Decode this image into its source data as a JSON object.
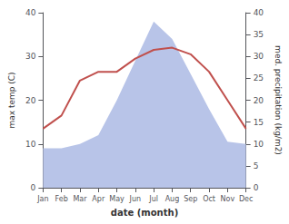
{
  "chart_data": {
    "type": "line",
    "categories": [
      "Jan",
      "Feb",
      "Mar",
      "Apr",
      "May",
      "Jun",
      "Jul",
      "Aug",
      "Sep",
      "Oct",
      "Nov",
      "Dec"
    ],
    "xlabel": "date (month)",
    "ylabel": "max temp (C)",
    "y2label": "med. precipitation (kg/m2)",
    "ylim": [
      0,
      40
    ],
    "yticks": [
      0,
      10,
      20,
      30,
      40
    ],
    "y2lim": [
      0,
      40
    ],
    "y2ticks": [
      0,
      5,
      10,
      15,
      20,
      25,
      30,
      35,
      40
    ],
    "grid": false,
    "series": [
      {
        "type": "area",
        "axis": "y2",
        "color": "#b8c4e8",
        "values": [
          9.0,
          9.0,
          10.0,
          12.0,
          20.0,
          29.0,
          38.0,
          34.0,
          26.0,
          18.0,
          10.5,
          10.0
        ]
      },
      {
        "type": "line",
        "axis": "y",
        "color": "#c0504d",
        "values": [
          13.5,
          16.5,
          24.5,
          26.5,
          26.5,
          29.5,
          31.5,
          32.0,
          30.5,
          26.5,
          20.0,
          13.5
        ]
      }
    ]
  }
}
